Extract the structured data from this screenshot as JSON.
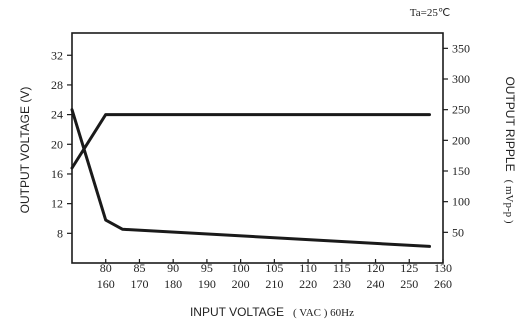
{
  "chart_data": {
    "type": "line",
    "corner_note": "Ta=25℃",
    "xlabel_main": "INPUT VOLTAGE",
    "xlabel_unit": "( VAC ) 60Hz",
    "ylabel_left": "OUTPUT VOLTAGE (V)",
    "ylabel_right_main": "OUTPUT RIPPLE",
    "ylabel_right_unit": "( mVp-p )",
    "x_ticks_top": [
      "80",
      "85",
      "90",
      "95",
      "100",
      "105",
      "110",
      "115",
      "120",
      "125",
      "130"
    ],
    "x_ticks_bottom": [
      "160",
      "170",
      "180",
      "190",
      "200",
      "210",
      "220",
      "230",
      "240",
      "250",
      "260"
    ],
    "x_range": [
      75,
      130
    ],
    "y_left_ticks": [
      "8",
      "12",
      "16",
      "20",
      "24",
      "28",
      "32"
    ],
    "y_left_range": [
      4,
      35
    ],
    "y_right_ticks": [
      "50",
      "100",
      "150",
      "200",
      "250",
      "300",
      "350"
    ],
    "y_right_range": [
      0,
      375
    ],
    "grid": false,
    "series": [
      {
        "axis": "left",
        "color": "#1a1a1a",
        "x": [
          75,
          80,
          128
        ],
        "y": [
          16.8,
          24,
          24
        ]
      },
      {
        "axis": "right",
        "color": "#1a1a1a",
        "x": [
          75,
          80,
          82.5,
          128
        ],
        "y": [
          250,
          70,
          55,
          27
        ]
      }
    ]
  }
}
